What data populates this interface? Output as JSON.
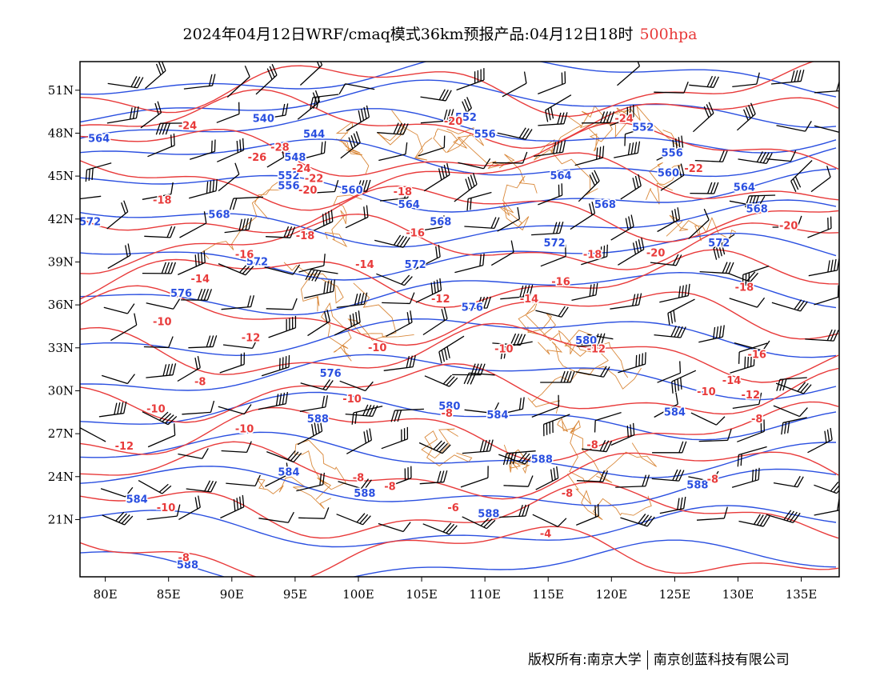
{
  "title": {
    "main": "2024年04月12日WRF/cmaq模式36km预报产品:04月12日18时",
    "level": "500hpa"
  },
  "footer": {
    "left": "版权所有:南京大学",
    "right": "南京创蓝科技有限公司"
  },
  "colors": {
    "height": "#2a4fe0",
    "temperature": "#e83a3a",
    "border": "#d9883a",
    "wind": "#000000"
  },
  "map": {
    "projection": "lat-lon",
    "lon_range": [
      78,
      138
    ],
    "lat_range": [
      17,
      53
    ],
    "x_ticks": [
      "80E",
      "85E",
      "90E",
      "95E",
      "100E",
      "105E",
      "110E",
      "115E",
      "120E",
      "125E",
      "130E",
      "135E"
    ],
    "y_ticks": [
      "51N",
      "48N",
      "45N",
      "42N",
      "39N",
      "36N",
      "33N",
      "30N",
      "27N",
      "24N",
      "21N"
    ],
    "height_contour_labels": [
      {
        "text": "540",
        "lon": 92.5,
        "lat": 49.0
      },
      {
        "text": "544",
        "lon": 96.5,
        "lat": 47.9
      },
      {
        "text": "552",
        "lon": 108.5,
        "lat": 49.1
      },
      {
        "text": "556",
        "lon": 110.0,
        "lat": 47.9
      },
      {
        "text": "552",
        "lon": 122.5,
        "lat": 48.4
      },
      {
        "text": "556",
        "lon": 124.8,
        "lat": 46.6
      },
      {
        "text": "560",
        "lon": 124.5,
        "lat": 45.2
      },
      {
        "text": "564",
        "lon": 79.5,
        "lat": 47.6
      },
      {
        "text": "548",
        "lon": 95.0,
        "lat": 46.3
      },
      {
        "text": "552",
        "lon": 94.5,
        "lat": 45.0
      },
      {
        "text": "556",
        "lon": 94.5,
        "lat": 44.3
      },
      {
        "text": "560",
        "lon": 99.5,
        "lat": 44.0
      },
      {
        "text": "564",
        "lon": 116.0,
        "lat": 45.0
      },
      {
        "text": "564",
        "lon": 104.0,
        "lat": 43.0
      },
      {
        "text": "568",
        "lon": 89.0,
        "lat": 42.3
      },
      {
        "text": "568",
        "lon": 106.5,
        "lat": 41.8
      },
      {
        "text": "568",
        "lon": 119.5,
        "lat": 43.0
      },
      {
        "text": "564",
        "lon": 130.5,
        "lat": 44.2
      },
      {
        "text": "568",
        "lon": 131.5,
        "lat": 42.7
      },
      {
        "text": "572",
        "lon": 78.8,
        "lat": 41.8
      },
      {
        "text": "572",
        "lon": 92.0,
        "lat": 39.0
      },
      {
        "text": "572",
        "lon": 104.5,
        "lat": 38.8
      },
      {
        "text": "572",
        "lon": 115.5,
        "lat": 40.3
      },
      {
        "text": "572",
        "lon": 128.5,
        "lat": 40.3
      },
      {
        "text": "576",
        "lon": 86.0,
        "lat": 36.8
      },
      {
        "text": "576",
        "lon": 109.0,
        "lat": 35.8
      },
      {
        "text": "576",
        "lon": 97.8,
        "lat": 31.2
      },
      {
        "text": "580",
        "lon": 118.0,
        "lat": 33.5
      },
      {
        "text": "580",
        "lon": 107.2,
        "lat": 28.9
      },
      {
        "text": "584",
        "lon": 111.0,
        "lat": 28.3
      },
      {
        "text": "584",
        "lon": 125.0,
        "lat": 28.5
      },
      {
        "text": "588",
        "lon": 96.8,
        "lat": 28.0
      },
      {
        "text": "584",
        "lon": 94.5,
        "lat": 24.3
      },
      {
        "text": "588",
        "lon": 100.5,
        "lat": 22.8
      },
      {
        "text": "588",
        "lon": 114.5,
        "lat": 25.2
      },
      {
        "text": "588",
        "lon": 126.8,
        "lat": 23.4
      },
      {
        "text": "588",
        "lon": 110.3,
        "lat": 21.4
      },
      {
        "text": "584",
        "lon": 82.5,
        "lat": 22.4
      },
      {
        "text": "588",
        "lon": 86.5,
        "lat": 17.8
      }
    ],
    "temperature_contour_labels": [
      {
        "text": "-20",
        "lon": 107.5,
        "lat": 48.8
      },
      {
        "text": "-24",
        "lon": 121.0,
        "lat": 49.0
      },
      {
        "text": "-24",
        "lon": 86.5,
        "lat": 48.5
      },
      {
        "text": "-28",
        "lon": 93.8,
        "lat": 47.0
      },
      {
        "text": "-26",
        "lon": 92.0,
        "lat": 46.3
      },
      {
        "text": "-24",
        "lon": 95.5,
        "lat": 45.5
      },
      {
        "text": "-22",
        "lon": 96.5,
        "lat": 44.8
      },
      {
        "text": "-20",
        "lon": 96.0,
        "lat": 44.0
      },
      {
        "text": "-22",
        "lon": 126.5,
        "lat": 45.5
      },
      {
        "text": "-18",
        "lon": 84.5,
        "lat": 43.3
      },
      {
        "text": "-18",
        "lon": 103.5,
        "lat": 43.9
      },
      {
        "text": "-16",
        "lon": 104.5,
        "lat": 41.0
      },
      {
        "text": "-18",
        "lon": 95.8,
        "lat": 40.8
      },
      {
        "text": "-20",
        "lon": 134.0,
        "lat": 41.5
      },
      {
        "text": "-16",
        "lon": 91.0,
        "lat": 39.5
      },
      {
        "text": "-20",
        "lon": 123.5,
        "lat": 39.6
      },
      {
        "text": "-18",
        "lon": 118.5,
        "lat": 39.5
      },
      {
        "text": "-14",
        "lon": 100.5,
        "lat": 38.8
      },
      {
        "text": "-16",
        "lon": 116.0,
        "lat": 37.6
      },
      {
        "text": "-18",
        "lon": 130.5,
        "lat": 37.2
      },
      {
        "text": "-14",
        "lon": 87.5,
        "lat": 37.8
      },
      {
        "text": "-12",
        "lon": 106.5,
        "lat": 36.4
      },
      {
        "text": "-14",
        "lon": 113.5,
        "lat": 36.4
      },
      {
        "text": "-10",
        "lon": 84.5,
        "lat": 34.8
      },
      {
        "text": "-12",
        "lon": 91.5,
        "lat": 33.7
      },
      {
        "text": "-10",
        "lon": 101.5,
        "lat": 33.0
      },
      {
        "text": "-10",
        "lon": 111.5,
        "lat": 32.9
      },
      {
        "text": "-12",
        "lon": 118.8,
        "lat": 32.9
      },
      {
        "text": "-16",
        "lon": 131.5,
        "lat": 32.5
      },
      {
        "text": "-8",
        "lon": 87.5,
        "lat": 30.6
      },
      {
        "text": "-14",
        "lon": 129.5,
        "lat": 30.7
      },
      {
        "text": "-10",
        "lon": 127.5,
        "lat": 29.9
      },
      {
        "text": "-12",
        "lon": 131.0,
        "lat": 29.7
      },
      {
        "text": "-10",
        "lon": 84.0,
        "lat": 28.7
      },
      {
        "text": "-10",
        "lon": 99.5,
        "lat": 29.4
      },
      {
        "text": "-8",
        "lon": 107.0,
        "lat": 28.4
      },
      {
        "text": "-8",
        "lon": 131.5,
        "lat": 28.0
      },
      {
        "text": "-10",
        "lon": 91.0,
        "lat": 27.3
      },
      {
        "text": "-12",
        "lon": 81.5,
        "lat": 26.1
      },
      {
        "text": "-8",
        "lon": 118.5,
        "lat": 26.2
      },
      {
        "text": "-8",
        "lon": 100.0,
        "lat": 23.9
      },
      {
        "text": "-8",
        "lon": 102.5,
        "lat": 23.3
      },
      {
        "text": "-8",
        "lon": 128.0,
        "lat": 23.8
      },
      {
        "text": "-8",
        "lon": 116.5,
        "lat": 22.8
      },
      {
        "text": "-10",
        "lon": 84.8,
        "lat": 21.8
      },
      {
        "text": "-6",
        "lon": 107.5,
        "lat": 21.8
      },
      {
        "text": "-4",
        "lon": 114.8,
        "lat": 20.0
      },
      {
        "text": "-8",
        "lon": 86.2,
        "lat": 18.3
      }
    ]
  }
}
